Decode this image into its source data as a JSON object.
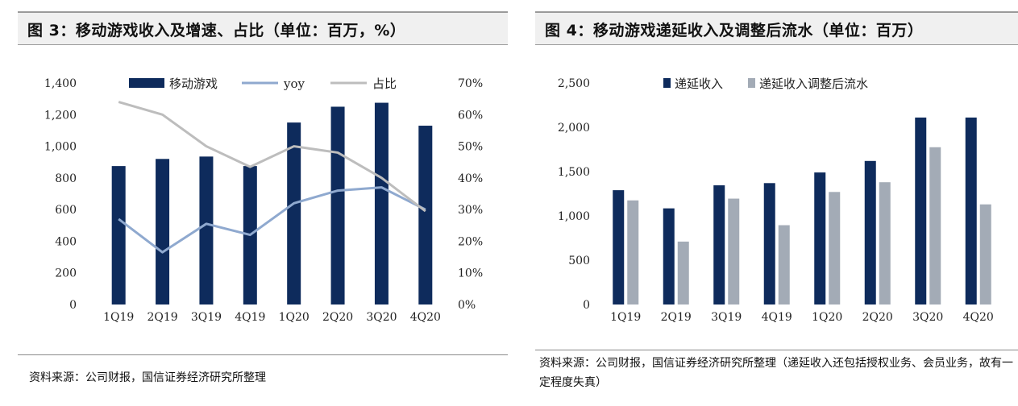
{
  "left": {
    "title": "图 3：移动游戏收入及增速、占比（单位：百万，%）",
    "source": "资料来源：公司财报，国信证券经济研究所整理"
  },
  "right": {
    "title": "图 4：移动游戏递延收入及调整后流水（单位：百万）",
    "source": "资料来源：公司财报，国信证券经济研究所整理（递延收入还包括授权业务、会员业务，故有一定程度失真）"
  },
  "colors": {
    "navy": "#0e2b5c",
    "light_blue": "#8fa9cf",
    "gray_line": "#bdbdbd",
    "gray_bar": "#a3abb6"
  },
  "chart_data": [
    {
      "type": "bar",
      "categories": [
        "1Q19",
        "2Q19",
        "3Q19",
        "4Q19",
        "1Q20",
        "2Q20",
        "3Q20",
        "4Q20"
      ],
      "series": [
        {
          "name": "移动游戏",
          "type": "bar",
          "axis": "left",
          "values": [
            875,
            920,
            935,
            875,
            1150,
            1250,
            1275,
            1130
          ]
        },
        {
          "name": "yoy",
          "type": "line",
          "axis": "right",
          "values": [
            27,
            16.5,
            25.5,
            22,
            32,
            36,
            37,
            30
          ]
        },
        {
          "name": "占比",
          "type": "line",
          "axis": "right",
          "values": [
            64,
            60,
            50,
            43.5,
            50,
            48,
            40,
            29.5
          ]
        }
      ],
      "yleft_ticks": [
        "0",
        "200",
        "400",
        "600",
        "800",
        "1,000",
        "1,200",
        "1,400"
      ],
      "yleft_lim": [
        0,
        1400
      ],
      "yright_ticks": [
        "0%",
        "10%",
        "20%",
        "30%",
        "40%",
        "50%",
        "60%",
        "70%"
      ],
      "yright_lim": [
        0,
        70
      ],
      "legend_position": "top",
      "grid": false
    },
    {
      "type": "bar",
      "categories": [
        "1Q19",
        "2Q19",
        "3Q19",
        "4Q19",
        "1Q20",
        "2Q20",
        "3Q20",
        "4Q20"
      ],
      "series": [
        {
          "name": "递延收入",
          "values": [
            1290,
            1085,
            1345,
            1370,
            1490,
            1620,
            2110,
            2110
          ]
        },
        {
          "name": "递延收入调整后流水",
          "values": [
            1175,
            710,
            1195,
            895,
            1270,
            1380,
            1775,
            1130
          ]
        }
      ],
      "y_ticks": [
        "0",
        "500",
        "1,000",
        "1,500",
        "2,000",
        "2,500"
      ],
      "ylim": [
        0,
        2500
      ],
      "legend_position": "top",
      "grid": false
    }
  ]
}
